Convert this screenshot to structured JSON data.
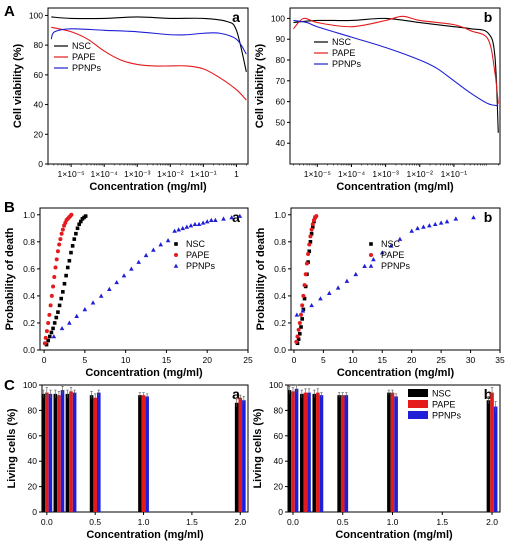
{
  "panel_labels": {
    "A": "A",
    "B": "B",
    "C": "C"
  },
  "colors": {
    "NSC": "#000000",
    "PAPE": "#e41a1c",
    "PPNPs": "#1f1fd6"
  },
  "chart_data": [
    {
      "id": "A-a",
      "type": "line",
      "sublabel": "a",
      "xlabel": "Concentration (mg/ml)",
      "ylabel": "Cell viability (%)",
      "xscale": "log",
      "xlim_log10": [
        -5.7,
        0.35
      ],
      "ylim": [
        0,
        105
      ],
      "xticks": [
        {
          "v": -5,
          "label": "1×10⁻⁵"
        },
        {
          "v": -4,
          "label": "1×10⁻⁴"
        },
        {
          "v": -3,
          "label": "1×10⁻³"
        },
        {
          "v": -2,
          "label": "1×10⁻²"
        },
        {
          "v": -1,
          "label": "1×10⁻¹"
        },
        {
          "v": 0,
          "label": "1"
        }
      ],
      "yticks": [
        0,
        20,
        40,
        60,
        80,
        100
      ],
      "legend": "left",
      "series": [
        {
          "name": "NSC",
          "x_log10": [
            -5.6,
            -5,
            -4,
            -3,
            -2,
            -1,
            -0.3,
            0,
            0.3
          ],
          "y": [
            99,
            98,
            98,
            99,
            98,
            98,
            96,
            90,
            62
          ]
        },
        {
          "name": "PAPE",
          "x_log10": [
            -5.6,
            -5,
            -4.5,
            -4,
            -3.5,
            -3,
            -2.5,
            -2,
            -1.5,
            -1,
            -0.5,
            0,
            0.3
          ],
          "y": [
            92,
            89,
            84,
            76,
            70,
            67,
            66,
            66,
            66,
            64,
            58,
            50,
            43
          ]
        },
        {
          "name": "PPNPs",
          "x_log10": [
            -5.6,
            -5.5,
            -5,
            -4,
            -3,
            -2,
            -1.5,
            -1,
            -0.5,
            0,
            0.3
          ],
          "y": [
            84,
            89,
            91,
            90,
            89,
            87,
            87,
            88,
            88,
            84,
            74
          ]
        }
      ]
    },
    {
      "id": "A-b",
      "type": "line",
      "sublabel": "b",
      "xlabel": "Concentration (mg/ml)",
      "ylabel": "Cell viability (%)",
      "xscale": "log",
      "xlim_log10": [
        -5.8,
        0.35
      ],
      "ylim": [
        30,
        105
      ],
      "xticks": [
        {
          "v": -5,
          "label": "1×10⁻⁵"
        },
        {
          "v": -4,
          "label": "1×10⁻⁴"
        },
        {
          "v": -3,
          "label": "1×10⁻³"
        },
        {
          "v": -2,
          "label": "1×10⁻²"
        },
        {
          "v": -1,
          "label": "1×10⁻¹"
        }
      ],
      "yticks": [
        40,
        50,
        60,
        70,
        80,
        90,
        100
      ],
      "legend": "right",
      "series": [
        {
          "name": "NSC",
          "x_log10": [
            -5.7,
            -5,
            -4,
            -3,
            -2,
            -1,
            -0.5,
            0,
            0.2,
            0.3
          ],
          "y": [
            98,
            99,
            99,
            100,
            98,
            96,
            95,
            93,
            82,
            45
          ]
        },
        {
          "name": "PAPE",
          "x_log10": [
            -5.7,
            -5.4,
            -5,
            -4,
            -3,
            -2.5,
            -2,
            -1,
            -0.5,
            0,
            0.2,
            0.3
          ],
          "y": [
            95,
            100,
            98,
            96,
            99,
            101,
            99,
            97,
            94,
            90,
            74,
            59
          ]
        },
        {
          "name": "PPNPs",
          "x_log10": [
            -5.7,
            -5.3,
            -5,
            -4,
            -3,
            -2,
            -1.5,
            -1,
            -0.5,
            0,
            0.3
          ],
          "y": [
            99,
            98,
            96,
            91,
            86,
            80,
            76,
            70,
            64,
            59,
            58
          ]
        }
      ]
    },
    {
      "id": "B-a",
      "type": "scatter",
      "sublabel": "a",
      "xlabel": "Concentration (mg/ml)",
      "ylabel": "Probability of death",
      "xlim": [
        -0.5,
        25
      ],
      "ylim": [
        0,
        1.05
      ],
      "xticks": [
        0,
        5,
        10,
        15,
        20,
        25
      ],
      "yticks": [
        0.0,
        0.2,
        0.4,
        0.6,
        0.8,
        1.0
      ],
      "legend": "right",
      "series": [
        {
          "name": "NSC",
          "marker": "square",
          "x": [
            0.3,
            0.5,
            0.7,
            0.9,
            1.1,
            1.3,
            1.5,
            1.7,
            1.9,
            2.1,
            2.3,
            2.5,
            2.7,
            2.9,
            3.1,
            3.3,
            3.5,
            3.7,
            3.9,
            4.1,
            4.3,
            4.5,
            4.7,
            4.9,
            5.1
          ],
          "y": [
            0.04,
            0.07,
            0.1,
            0.13,
            0.16,
            0.2,
            0.24,
            0.28,
            0.33,
            0.38,
            0.43,
            0.49,
            0.55,
            0.61,
            0.66,
            0.72,
            0.77,
            0.82,
            0.86,
            0.9,
            0.93,
            0.95,
            0.97,
            0.98,
            0.99
          ]
        },
        {
          "name": "PAPE",
          "marker": "circle",
          "x": [
            0.1,
            0.2,
            0.35,
            0.5,
            0.65,
            0.8,
            0.95,
            1.1,
            1.25,
            1.4,
            1.55,
            1.7,
            1.85,
            2.0,
            2.15,
            2.3,
            2.45,
            2.6,
            2.75,
            2.9,
            3.05,
            3.2,
            3.35
          ],
          "y": [
            0.05,
            0.09,
            0.14,
            0.2,
            0.26,
            0.33,
            0.4,
            0.47,
            0.54,
            0.61,
            0.67,
            0.73,
            0.78,
            0.82,
            0.86,
            0.89,
            0.92,
            0.94,
            0.96,
            0.97,
            0.98,
            0.99,
            1.0
          ]
        },
        {
          "name": "PPNPs",
          "marker": "triangle",
          "x": [
            1.2,
            2.2,
            3.1,
            4.0,
            5.0,
            6.0,
            7.0,
            8.0,
            8.9,
            9.8,
            10.7,
            11.6,
            12.5,
            13.4,
            14.3,
            15.2,
            16.0,
            16.5,
            17.0,
            17.5,
            18.0,
            18.5,
            19.0,
            19.5,
            20.0,
            20.5,
            21.0,
            22.0,
            23.0,
            24.0
          ],
          "y": [
            0.1,
            0.16,
            0.2,
            0.25,
            0.3,
            0.35,
            0.4,
            0.45,
            0.5,
            0.55,
            0.6,
            0.65,
            0.7,
            0.74,
            0.78,
            0.81,
            0.88,
            0.89,
            0.9,
            0.91,
            0.92,
            0.93,
            0.93,
            0.94,
            0.95,
            0.96,
            0.96,
            0.97,
            0.98,
            0.99
          ]
        }
      ]
    },
    {
      "id": "B-b",
      "type": "scatter",
      "sublabel": "b",
      "xlabel": "Concentration (mg/ml)",
      "ylabel": "Probability of death",
      "xlim": [
        -0.5,
        35
      ],
      "ylim": [
        0,
        1.05
      ],
      "xticks": [
        0,
        5,
        10,
        15,
        20,
        25,
        30,
        35
      ],
      "yticks": [
        0.0,
        0.2,
        0.4,
        0.6,
        0.8,
        1.0
      ],
      "legend": "right",
      "series": [
        {
          "name": "NSC",
          "marker": "square",
          "x": [
            0.6,
            0.8,
            1.0,
            1.2,
            1.4,
            1.6,
            1.8,
            2.0,
            2.2,
            2.4,
            2.6,
            2.8,
            3.0,
            3.2,
            3.4,
            3.6
          ],
          "y": [
            0.05,
            0.08,
            0.12,
            0.17,
            0.23,
            0.3,
            0.38,
            0.47,
            0.56,
            0.65,
            0.73,
            0.8,
            0.86,
            0.91,
            0.95,
            0.98
          ]
        },
        {
          "name": "PAPE",
          "marker": "circle",
          "x": [
            0.4,
            0.6,
            0.8,
            1.0,
            1.2,
            1.4,
            1.6,
            1.8,
            2.0,
            2.2,
            2.4,
            2.6,
            2.8,
            3.0,
            3.2,
            3.4,
            3.6,
            3.8
          ],
          "y": [
            0.06,
            0.1,
            0.15,
            0.2,
            0.26,
            0.33,
            0.4,
            0.48,
            0.56,
            0.64,
            0.71,
            0.78,
            0.84,
            0.89,
            0.93,
            0.96,
            0.98,
            0.99
          ]
        },
        {
          "name": "PPNPs",
          "marker": "triangle",
          "x": [
            0.5,
            1.5,
            3.0,
            4.5,
            6.0,
            7.5,
            9.0,
            10.5,
            12.0,
            13.5,
            15.0,
            16.5,
            18.0,
            20.0,
            21.0,
            22.0,
            23.0,
            24.0,
            25.0,
            26.0,
            27.5,
            30.5
          ],
          "y": [
            0.26,
            0.29,
            0.33,
            0.38,
            0.42,
            0.46,
            0.51,
            0.56,
            0.62,
            0.67,
            0.72,
            0.77,
            0.82,
            0.88,
            0.9,
            0.91,
            0.92,
            0.93,
            0.94,
            0.95,
            0.97,
            0.98
          ]
        }
      ]
    },
    {
      "id": "C-a",
      "type": "bar",
      "sublabel": "a",
      "xlabel": "Concentration (mg/ml)",
      "ylabel": "Living cells (%)",
      "xlim": [
        -0.05,
        2.08
      ],
      "ylim": [
        0,
        100
      ],
      "xticks": [
        {
          "v": 0.0,
          "label": "0.0"
        },
        {
          "v": 0.5,
          "label": "0.5"
        },
        {
          "v": 1.0,
          "label": "1.0"
        },
        {
          "v": 1.5,
          "label": "1.5"
        },
        {
          "v": 2.0,
          "label": "2.0"
        }
      ],
      "yticks": [
        0,
        20,
        40,
        60,
        80,
        100
      ],
      "x": [
        0.0,
        0.125,
        0.25,
        0.5,
        1.0,
        2.0
      ],
      "series": [
        {
          "name": "NSC",
          "values": [
            93,
            93,
            93,
            92,
            92,
            86
          ],
          "err": [
            3,
            3,
            3,
            3,
            2,
            3
          ]
        },
        {
          "name": "PAPE",
          "values": [
            94,
            92,
            95,
            90,
            92,
            90
          ],
          "err": [
            4,
            3,
            3,
            3,
            2,
            2
          ]
        },
        {
          "name": "PPNPs",
          "values": [
            93,
            96,
            94,
            94,
            91,
            88
          ],
          "err": [
            3,
            3,
            2,
            2,
            2,
            3
          ]
        }
      ]
    },
    {
      "id": "C-b",
      "type": "bar",
      "sublabel": "b",
      "xlabel": "Concentration (mg/ml)",
      "ylabel": "Living cells (%)",
      "xlim": [
        -0.05,
        2.08
      ],
      "ylim": [
        0,
        100
      ],
      "xticks": [
        {
          "v": 0.0,
          "label": "0.0"
        },
        {
          "v": 0.5,
          "label": "0.5"
        },
        {
          "v": 1.0,
          "label": "1.0"
        },
        {
          "v": 1.5,
          "label": "1.5"
        },
        {
          "v": 2.0,
          "label": "2.0"
        }
      ],
      "yticks": [
        0,
        20,
        40,
        60,
        80,
        100
      ],
      "legend": "top-right",
      "x": [
        0.0,
        0.125,
        0.25,
        0.5,
        1.0,
        2.0
      ],
      "series": [
        {
          "name": "NSC",
          "values": [
            96,
            93,
            93,
            92,
            94,
            88
          ],
          "err": [
            3,
            3,
            3,
            2,
            2,
            3
          ]
        },
        {
          "name": "PAPE",
          "values": [
            95,
            94,
            94,
            92,
            94,
            94
          ],
          "err": [
            3,
            3,
            3,
            2,
            2,
            4
          ]
        },
        {
          "name": "PPNPs",
          "values": [
            97,
            94,
            92,
            92,
            91,
            83
          ],
          "err": [
            3,
            3,
            2,
            2,
            2,
            4
          ]
        }
      ]
    }
  ]
}
